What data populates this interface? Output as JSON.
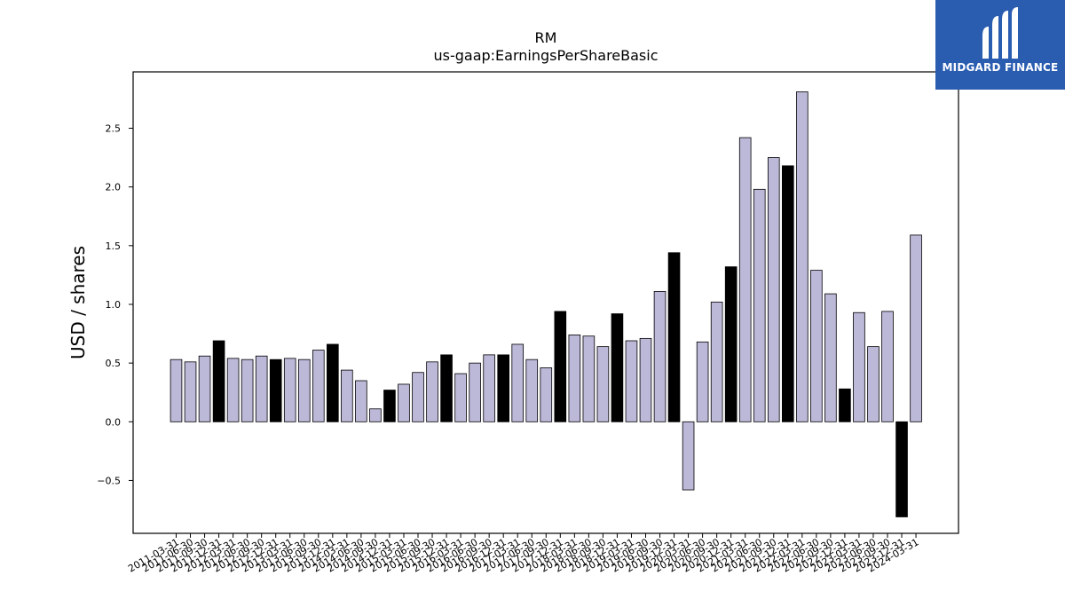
{
  "chart_data": {
    "type": "bar",
    "title": "RM",
    "subtitle": "us-gaap:EarningsPerShareBasic",
    "xlabel": "",
    "ylabel": "USD / shares",
    "ylim": [
      -0.95,
      2.98
    ],
    "yticks": [
      -0.5,
      0.0,
      0.5,
      1.0,
      1.5,
      2.0,
      2.5
    ],
    "yticklabels": [
      "−0.5",
      "0.0",
      "0.5",
      "1.0",
      "1.5",
      "2.0",
      "2.5"
    ],
    "grid": false,
    "categories": [
      "2011-03-31",
      "2011-06-30",
      "2011-09-30",
      "2011-12-31",
      "2012-03-31",
      "2012-06-30",
      "2012-09-30",
      "2012-12-31",
      "2013-03-31",
      "2013-06-30",
      "2013-09-30",
      "2013-12-31",
      "2014-03-31",
      "2014-06-30",
      "2014-09-30",
      "2014-12-31",
      "2015-03-31",
      "2015-06-30",
      "2015-09-30",
      "2015-12-31",
      "2016-03-31",
      "2016-06-30",
      "2016-09-30",
      "2016-12-31",
      "2017-03-31",
      "2017-06-30",
      "2017-09-30",
      "2017-12-31",
      "2018-03-31",
      "2018-06-30",
      "2018-09-30",
      "2018-12-31",
      "2019-03-31",
      "2019-06-30",
      "2019-09-30",
      "2019-12-31",
      "2020-03-31",
      "2020-06-30",
      "2020-09-30",
      "2020-12-31",
      "2021-03-31",
      "2021-06-30",
      "2021-09-30",
      "2021-12-31",
      "2022-03-31",
      "2022-06-30",
      "2022-09-30",
      "2022-12-31",
      "2023-03-31",
      "2023-06-30",
      "2023-09-30",
      "2023-12-31",
      "2024-03-31"
    ],
    "values": [
      0.53,
      0.51,
      0.56,
      0.69,
      0.54,
      0.53,
      0.56,
      0.53,
      0.54,
      0.53,
      0.61,
      0.66,
      0.44,
      0.35,
      0.11,
      0.27,
      0.32,
      0.42,
      0.51,
      0.57,
      0.41,
      0.5,
      0.57,
      0.57,
      0.66,
      0.53,
      0.46,
      0.94,
      0.74,
      0.73,
      0.64,
      0.92,
      0.69,
      0.71,
      1.11,
      1.44,
      -0.58,
      0.68,
      1.02,
      1.32,
      2.42,
      1.98,
      2.25,
      2.18,
      2.81,
      1.29,
      1.09,
      0.28,
      0.93,
      0.64,
      0.94,
      -0.81,
      1.59
    ],
    "highlight": [
      false,
      false,
      false,
      true,
      false,
      false,
      false,
      true,
      false,
      false,
      false,
      true,
      false,
      false,
      false,
      true,
      false,
      false,
      false,
      true,
      false,
      false,
      false,
      true,
      false,
      false,
      false,
      true,
      false,
      false,
      false,
      true,
      false,
      false,
      false,
      true,
      false,
      false,
      false,
      true,
      false,
      false,
      false,
      true,
      false,
      false,
      false,
      true,
      false,
      false,
      false,
      true,
      false
    ],
    "colors": {
      "bar": "#bcb8d8",
      "highlight_bar": "#000000",
      "edge": "#000000"
    }
  },
  "logo": {
    "text": "MIDGARD FINANCE",
    "background": "#2a5cb0"
  }
}
